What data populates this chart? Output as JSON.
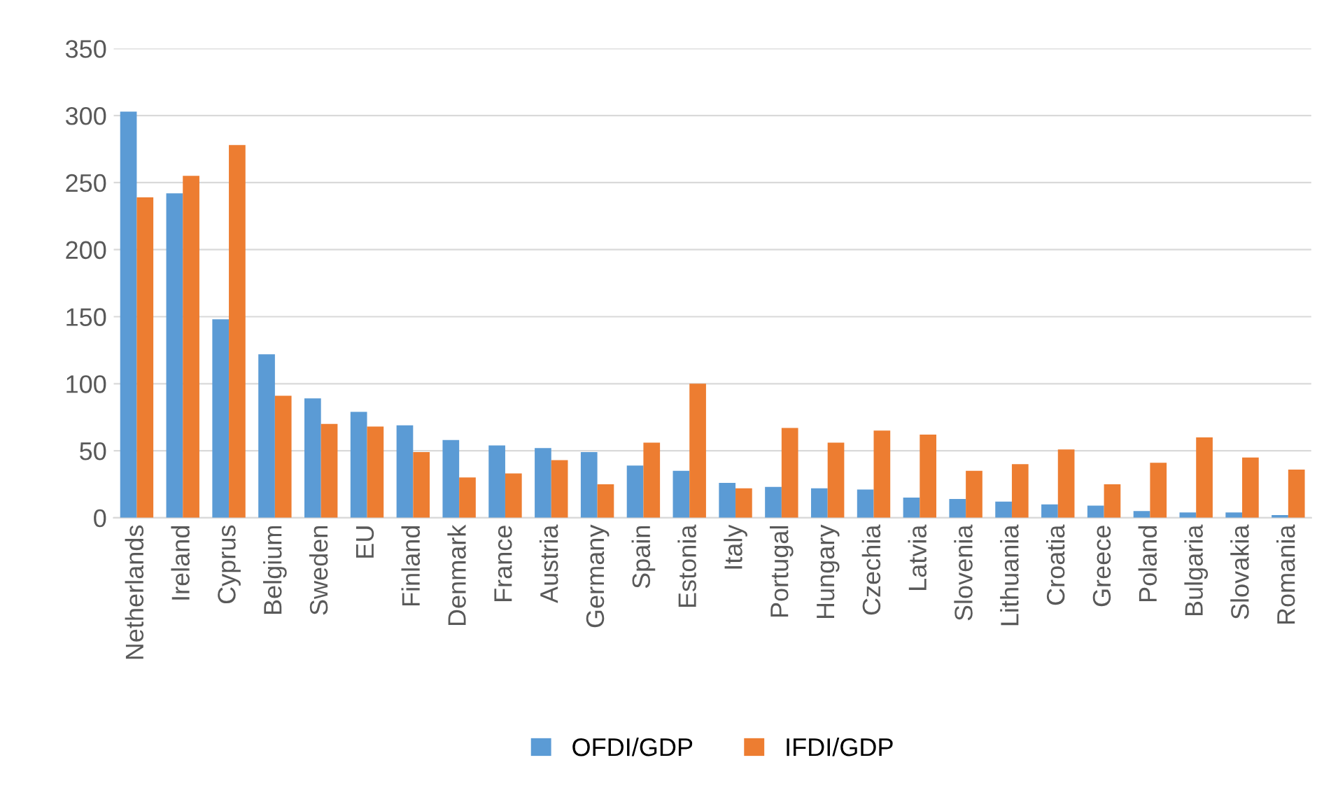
{
  "chart_data": {
    "type": "bar",
    "categories": [
      "Netherlands",
      "Ireland",
      "Cyprus",
      "Belgium",
      "Sweden",
      "EU",
      "Finland",
      "Denmark",
      "France",
      "Austria",
      "Germany",
      "Spain",
      "Estonia",
      "Italy",
      "Portugal",
      "Hungary",
      "Czechia",
      "Latvia",
      "Slovenia",
      "Lithuania",
      "Croatia",
      "Greece",
      "Poland",
      "Bulgaria",
      "Slovakia",
      "Romania"
    ],
    "series": [
      {
        "name": "OFDI/GDP",
        "color": "#5b9bd5",
        "values": [
          303,
          242,
          148,
          122,
          89,
          79,
          69,
          58,
          54,
          52,
          49,
          39,
          35,
          26,
          23,
          22,
          21,
          15,
          14,
          12,
          10,
          9,
          5,
          4,
          4,
          2
        ]
      },
      {
        "name": "IFDI/GDP",
        "color": "#ed7d31",
        "values": [
          239,
          255,
          278,
          91,
          70,
          68,
          49,
          30,
          33,
          43,
          25,
          56,
          100,
          22,
          67,
          56,
          65,
          62,
          35,
          40,
          51,
          25,
          41,
          60,
          45,
          36
        ]
      }
    ],
    "ylim": [
      0,
      350
    ],
    "yticks": [
      0,
      50,
      100,
      150,
      200,
      250,
      300,
      350
    ],
    "grid": "y",
    "legend": "bottom"
  }
}
